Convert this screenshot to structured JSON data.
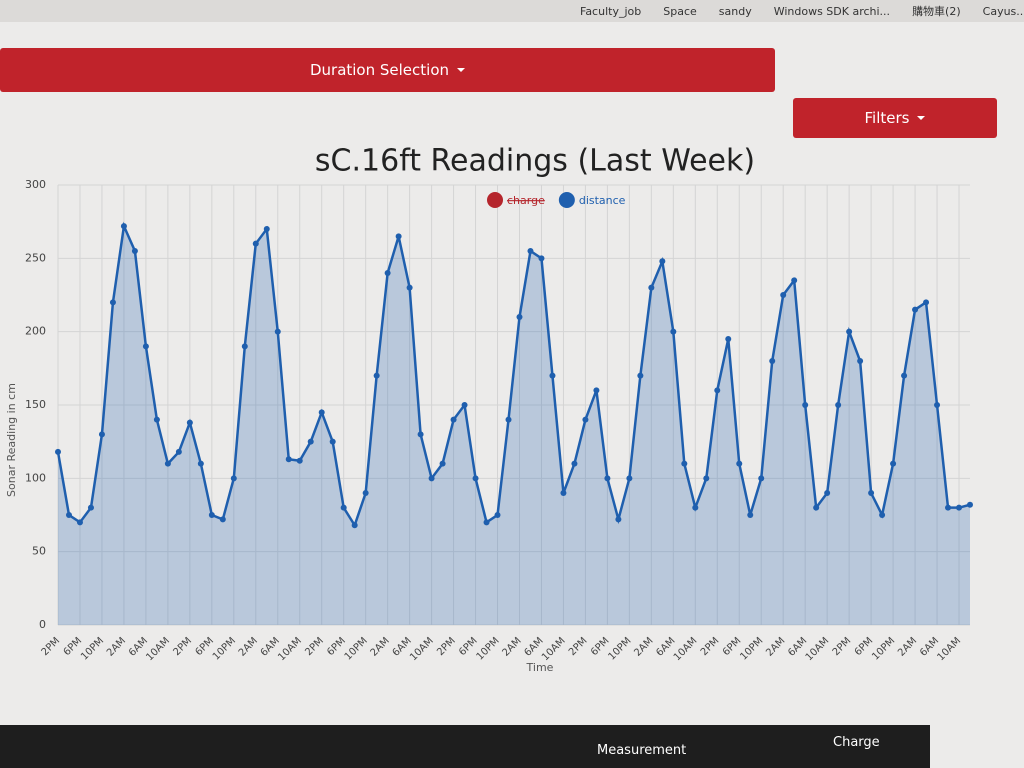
{
  "bookmarks": [
    "Faculty_job",
    "Space",
    "sandy",
    "Windows SDK archi...",
    "購物車(2)",
    "Cayus..."
  ],
  "buttons": {
    "duration": "Duration Selection",
    "filters": "Filters"
  },
  "tabs": [
    "Measurement",
    "Charge"
  ],
  "chart_data": {
    "type": "line",
    "title": "sC.16ft Readings (Last Week)",
    "x_label": "Time",
    "y_label": "Sonar Reading in cm",
    "legend": [
      {
        "name": "charge",
        "color": "#b5252c",
        "hidden": true
      },
      {
        "name": "distance",
        "color": "#1f5fae",
        "hidden": false
      }
    ],
    "categories": [
      "2PM",
      null,
      "6PM",
      null,
      "10PM",
      null,
      "2AM",
      null,
      "6AM",
      null,
      "10AM",
      null,
      "2PM",
      null,
      "6PM",
      null,
      "10PM",
      null,
      "2AM",
      null,
      "6AM",
      null,
      "10AM",
      null,
      "2PM",
      null,
      "6PM",
      null,
      "10PM",
      null,
      "2AM",
      null,
      "6AM",
      null,
      "10AM",
      null,
      "2PM",
      null,
      "6PM",
      null,
      "10PM",
      null,
      "2AM",
      null,
      "6AM",
      null,
      "10AM",
      null,
      "2PM",
      null,
      "6PM",
      null,
      "10PM",
      null,
      "2AM",
      null,
      "6AM",
      null,
      "10AM",
      null,
      "2PM",
      null,
      "6PM",
      null,
      "10PM",
      null,
      "2AM",
      null,
      "6AM",
      null,
      "10AM",
      null,
      "2PM",
      null,
      "6PM",
      null,
      "10PM",
      null,
      "2AM",
      null,
      "6AM",
      null,
      "10AM",
      null
    ],
    "series": [
      {
        "name": "distance",
        "color": "#1f5fae",
        "values": [
          118,
          75,
          70,
          80,
          130,
          220,
          272,
          255,
          190,
          140,
          110,
          118,
          138,
          110,
          75,
          72,
          100,
          190,
          260,
          270,
          200,
          113,
          112,
          125,
          145,
          125,
          80,
          68,
          90,
          170,
          240,
          265,
          230,
          130,
          100,
          110,
          140,
          150,
          100,
          70,
          75,
          140,
          210,
          255,
          250,
          170,
          90,
          110,
          140,
          160,
          100,
          72,
          100,
          170,
          230,
          248,
          200,
          110,
          80,
          100,
          160,
          195,
          110,
          75,
          100,
          180,
          225,
          235,
          150,
          80,
          90,
          150,
          200,
          180,
          90,
          75,
          110,
          170,
          215,
          220,
          150,
          80,
          80,
          82
        ]
      }
    ],
    "ylim": [
      0,
      300
    ],
    "yticks": [
      0,
      50,
      100,
      150,
      200,
      250,
      300
    ],
    "grid": true
  }
}
